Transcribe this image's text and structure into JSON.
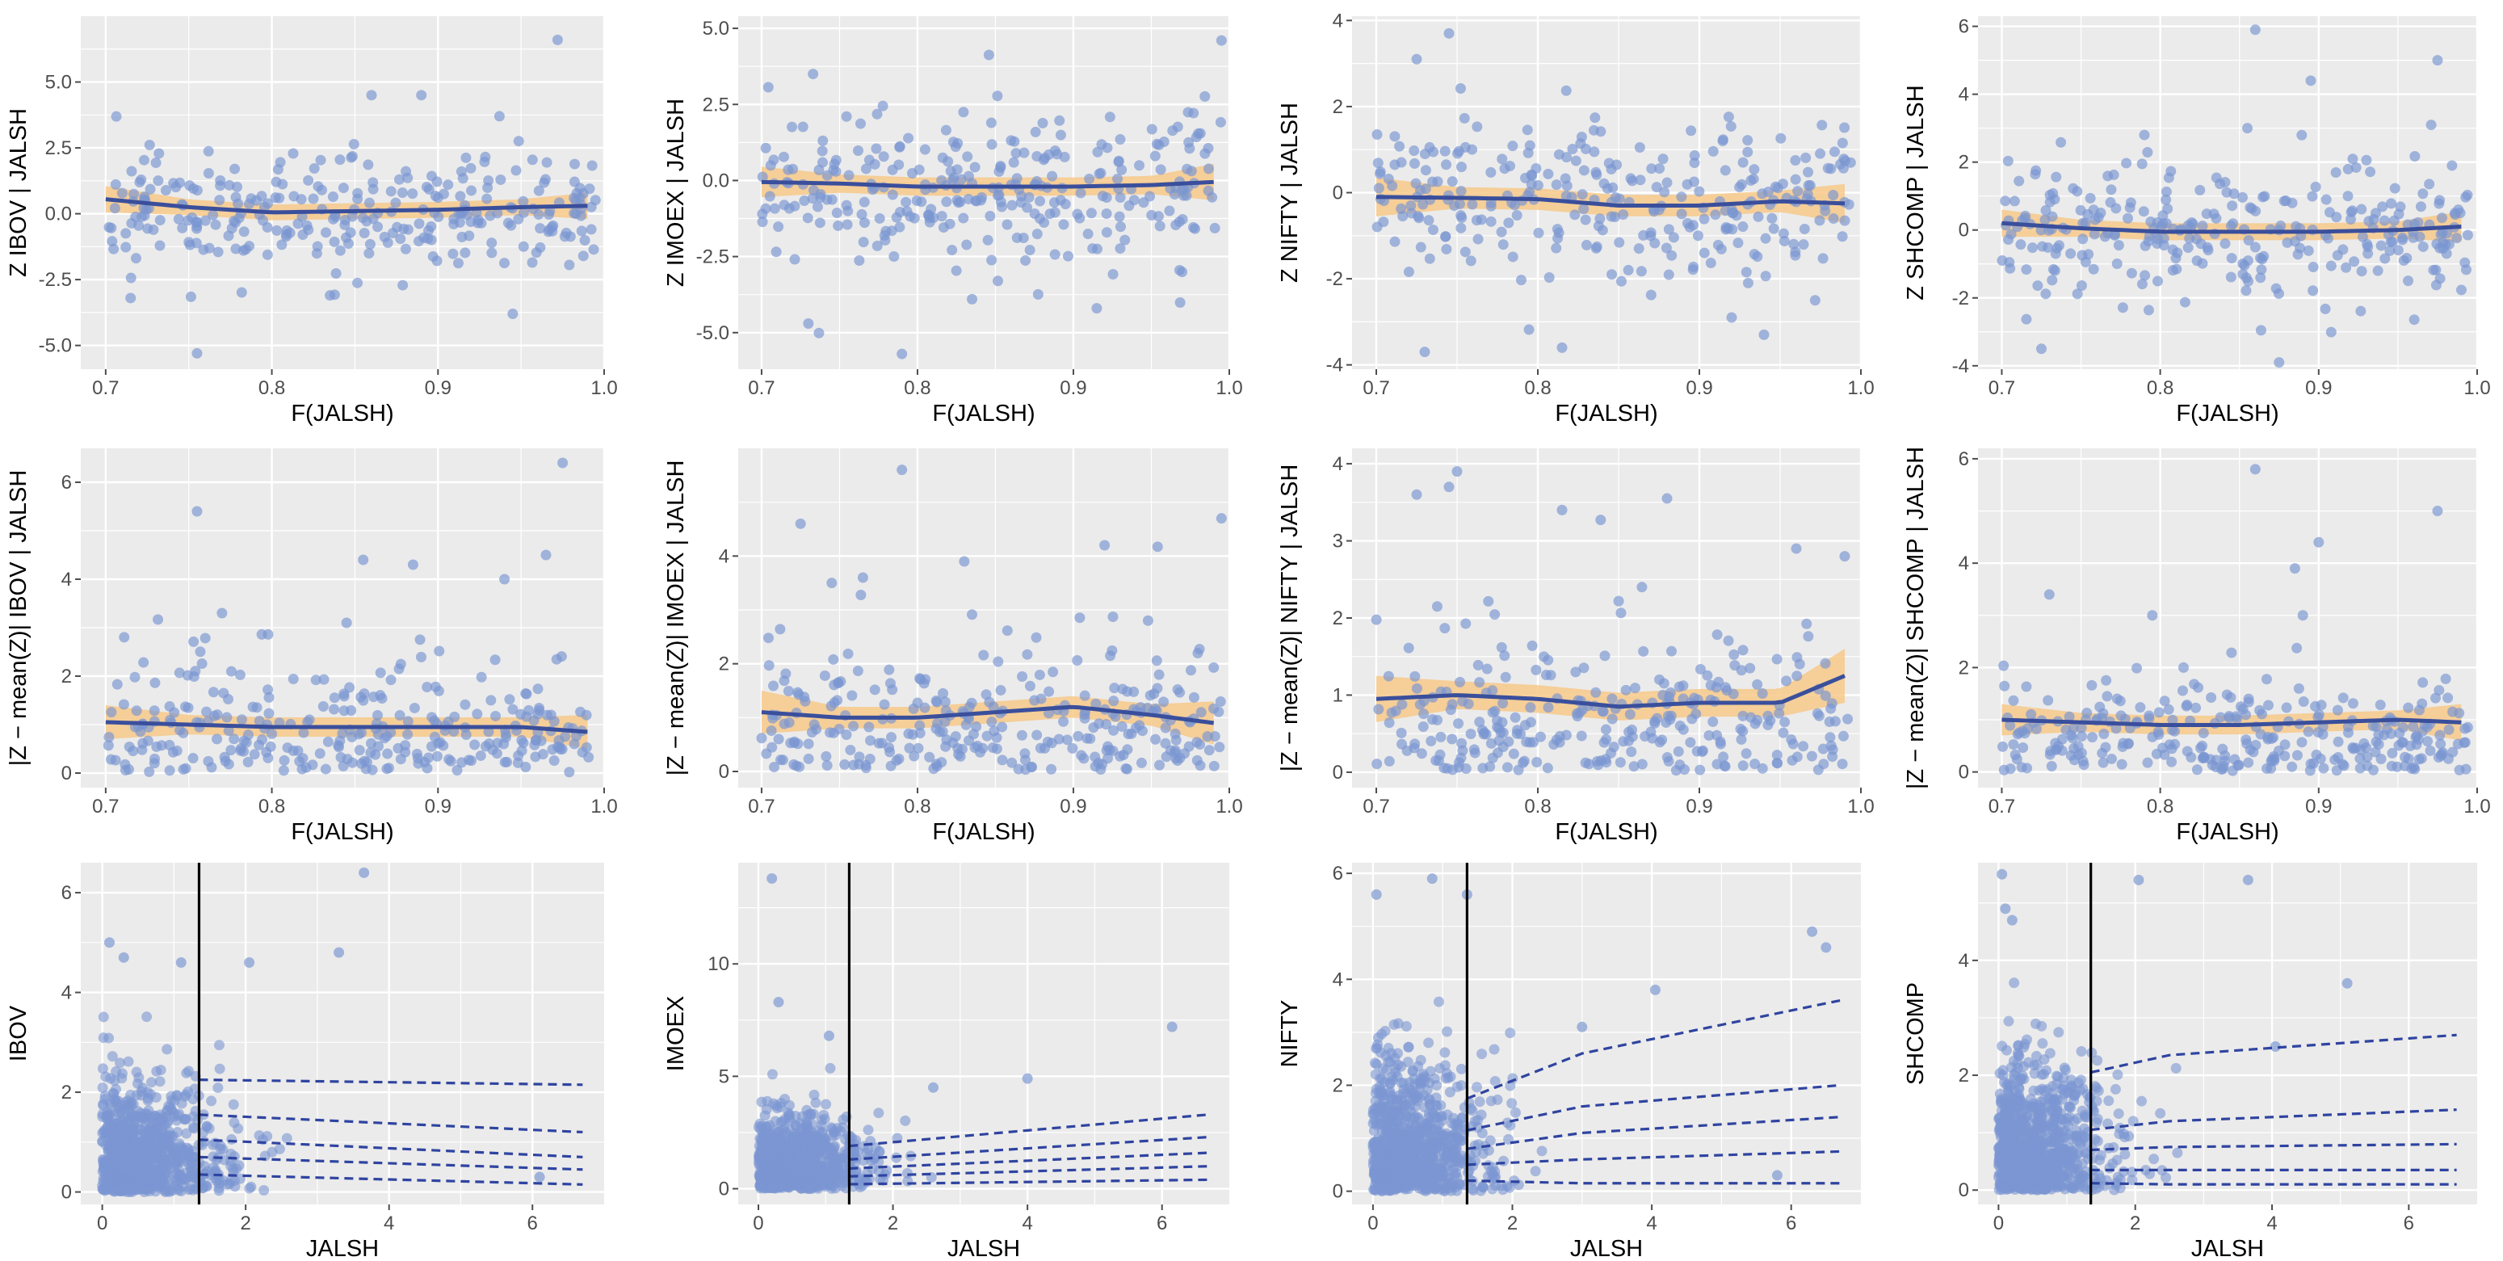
{
  "figure": {
    "background": "#ffffff",
    "panel_background": "#ebebeb",
    "grid_color": "#ffffff",
    "point_color": "#7b96d2",
    "smooth_color": "#3a4f9c",
    "band_color": "#f7c98a",
    "quantile_color": "#2f44a0",
    "threshold_color": "#000000",
    "tick_color": "#4d4d4d"
  },
  "chart_data": [
    {
      "id": "p11",
      "type": "scatter",
      "xlabel": "F(JALSH)",
      "ylabel": "Z  IBOV | JALSH",
      "xlim": [
        0.685,
        1.0
      ],
      "ylim": [
        -5.9,
        7.5
      ],
      "xticks": [
        0.7,
        0.8,
        0.9,
        1.0
      ],
      "xtick_labels": [
        "0.7",
        "0.8",
        "0.9",
        "1.0"
      ],
      "yticks": [
        -5,
        -2.5,
        0,
        2.5,
        5
      ],
      "ytick_labels": [
        "-5.0",
        "-2.5",
        "0.0",
        "2.5",
        "5.0"
      ],
      "n_points": 290,
      "seed": 11,
      "scatter_sd": 1.3,
      "smooth_x": [
        0.7,
        0.75,
        0.8,
        0.85,
        0.9,
        0.95,
        0.99
      ],
      "smooth_y": [
        0.55,
        0.25,
        0.05,
        0.1,
        0.15,
        0.25,
        0.3
      ],
      "band_half_width": [
        0.5,
        0.3,
        0.3,
        0.3,
        0.3,
        0.3,
        0.5
      ],
      "extra_points": [
        [
          0.755,
          -5.3
        ],
        [
          0.972,
          6.6
        ],
        [
          0.937,
          3.7
        ],
        [
          0.835,
          -3.1
        ],
        [
          0.945,
          -3.8
        ],
        [
          0.715,
          -3.2
        ],
        [
          0.86,
          4.5
        ],
        [
          0.89,
          4.5
        ]
      ]
    },
    {
      "id": "p12",
      "type": "scatter",
      "xlabel": "F(JALSH)",
      "ylabel": "Z  IMOEX | JALSH",
      "xlim": [
        0.685,
        1.0
      ],
      "ylim": [
        -6.2,
        5.4
      ],
      "xticks": [
        0.7,
        0.8,
        0.9,
        1.0
      ],
      "xtick_labels": [
        "0.7",
        "0.8",
        "0.9",
        "1.0"
      ],
      "yticks": [
        -5,
        -2.5,
        0,
        2.5,
        5
      ],
      "ytick_labels": [
        "-5.0",
        "-2.5",
        "0.0",
        "2.5",
        "5.0"
      ],
      "n_points": 290,
      "seed": 12,
      "scatter_sd": 1.5,
      "smooth_x": [
        0.7,
        0.75,
        0.8,
        0.85,
        0.9,
        0.95,
        0.99
      ],
      "smooth_y": [
        -0.05,
        -0.1,
        -0.2,
        -0.2,
        -0.2,
        -0.15,
        -0.05
      ],
      "band_half_width": [
        0.5,
        0.3,
        0.3,
        0.3,
        0.3,
        0.3,
        0.6
      ],
      "extra_points": [
        [
          0.79,
          -5.7
        ],
        [
          0.995,
          4.6
        ],
        [
          0.73,
          -4.7
        ],
        [
          0.733,
          3.5
        ],
        [
          0.915,
          -4.2
        ],
        [
          0.835,
          -3.9
        ]
      ]
    },
    {
      "id": "p13",
      "type": "scatter",
      "xlabel": "F(JALSH)",
      "ylabel": "Z  NIFTY | JALSH",
      "xlim": [
        0.685,
        1.0
      ],
      "ylim": [
        -4.1,
        4.1
      ],
      "xticks": [
        0.7,
        0.8,
        0.9,
        1.0
      ],
      "xtick_labels": [
        "0.7",
        "0.8",
        "0.9",
        "1.0"
      ],
      "yticks": [
        -4,
        -2,
        0,
        2,
        4
      ],
      "ytick_labels": [
        "-4",
        "-2",
        "0",
        "2",
        "4"
      ],
      "n_points": 290,
      "seed": 13,
      "scatter_sd": 1.15,
      "smooth_x": [
        0.7,
        0.75,
        0.8,
        0.85,
        0.9,
        0.95,
        0.99
      ],
      "smooth_y": [
        -0.1,
        -0.12,
        -0.15,
        -0.3,
        -0.3,
        -0.2,
        -0.25
      ],
      "band_half_width": [
        0.45,
        0.25,
        0.25,
        0.25,
        0.25,
        0.25,
        0.45
      ],
      "extra_points": [
        [
          0.745,
          3.7
        ],
        [
          0.725,
          3.1
        ],
        [
          0.73,
          -3.7
        ],
        [
          0.815,
          -3.6
        ],
        [
          0.94,
          -3.3
        ],
        [
          0.92,
          -2.9
        ]
      ]
    },
    {
      "id": "p14",
      "type": "scatter",
      "xlabel": "F(JALSH)",
      "ylabel": "Z  SHCOMP | JALSH",
      "xlim": [
        0.685,
        1.0
      ],
      "ylim": [
        -4.1,
        6.3
      ],
      "xticks": [
        0.7,
        0.8,
        0.9,
        1.0
      ],
      "xtick_labels": [
        "0.7",
        "0.8",
        "0.9",
        "1.0"
      ],
      "yticks": [
        -4,
        -2,
        0,
        2,
        4,
        6
      ],
      "ytick_labels": [
        "-4",
        "-2",
        "0",
        "2",
        "4",
        "6"
      ],
      "n_points": 290,
      "seed": 14,
      "scatter_sd": 1.15,
      "smooth_x": [
        0.7,
        0.75,
        0.8,
        0.85,
        0.9,
        0.95,
        0.99
      ],
      "smooth_y": [
        0.2,
        0.05,
        -0.05,
        -0.05,
        -0.05,
        0.0,
        0.1
      ],
      "band_half_width": [
        0.4,
        0.25,
        0.25,
        0.25,
        0.25,
        0.25,
        0.45
      ],
      "extra_points": [
        [
          0.86,
          5.9
        ],
        [
          0.975,
          5.0
        ],
        [
          0.895,
          4.4
        ],
        [
          0.725,
          -3.5
        ],
        [
          0.875,
          -3.9
        ],
        [
          0.855,
          3.0
        ],
        [
          0.79,
          2.8
        ]
      ]
    },
    {
      "id": "p21",
      "type": "scatter",
      "xlabel": "F(JALSH)",
      "ylabel": "|Z − mean(Z)|   IBOV | JALSH",
      "xlim": [
        0.685,
        1.0
      ],
      "ylim": [
        -0.3,
        6.7
      ],
      "xticks": [
        0.7,
        0.8,
        0.9,
        1.0
      ],
      "xtick_labels": [
        "0.7",
        "0.8",
        "0.9",
        "1.0"
      ],
      "yticks": [
        0,
        2,
        4,
        6
      ],
      "ytick_labels": [
        "0",
        "2",
        "4",
        "6"
      ],
      "n_points": 290,
      "seed": 21,
      "scatter_abs": true,
      "scatter_sd": 1.25,
      "smooth_x": [
        0.7,
        0.75,
        0.8,
        0.85,
        0.9,
        0.95,
        0.99
      ],
      "smooth_y": [
        1.05,
        1.0,
        0.95,
        0.95,
        0.95,
        0.95,
        0.85
      ],
      "band_half_width": [
        0.35,
        0.2,
        0.2,
        0.2,
        0.2,
        0.2,
        0.35
      ],
      "extra_points": [
        [
          0.975,
          6.4
        ],
        [
          0.755,
          5.4
        ],
        [
          0.855,
          4.4
        ],
        [
          0.885,
          4.3
        ],
        [
          0.965,
          4.5
        ],
        [
          0.94,
          4.0
        ],
        [
          0.845,
          3.1
        ],
        [
          0.77,
          3.3
        ]
      ]
    },
    {
      "id": "p22",
      "type": "scatter",
      "xlabel": "F(JALSH)",
      "ylabel": "|Z − mean(Z)|   IMOEX | JALSH",
      "xlim": [
        0.685,
        1.0
      ],
      "ylim": [
        -0.3,
        6.0
      ],
      "xticks": [
        0.7,
        0.8,
        0.9,
        1.0
      ],
      "xtick_labels": [
        "0.7",
        "0.8",
        "0.9",
        "1.0"
      ],
      "yticks": [
        0,
        2,
        4
      ],
      "ytick_labels": [
        "0",
        "2",
        "4"
      ],
      "n_points": 290,
      "seed": 22,
      "scatter_abs": true,
      "scatter_sd": 1.3,
      "smooth_x": [
        0.7,
        0.75,
        0.8,
        0.85,
        0.9,
        0.95,
        0.99
      ],
      "smooth_y": [
        1.1,
        1.0,
        1.0,
        1.1,
        1.2,
        1.05,
        0.9
      ],
      "band_half_width": [
        0.4,
        0.2,
        0.2,
        0.2,
        0.2,
        0.2,
        0.4
      ],
      "extra_points": [
        [
          0.79,
          5.6
        ],
        [
          0.995,
          4.7
        ],
        [
          0.725,
          4.6
        ],
        [
          0.92,
          4.2
        ],
        [
          0.765,
          3.6
        ],
        [
          0.83,
          3.9
        ],
        [
          0.745,
          3.5
        ]
      ]
    },
    {
      "id": "p23",
      "type": "scatter",
      "xlabel": "F(JALSH)",
      "ylabel": "|Z − mean(Z)|   NIFTY | JALSH",
      "xlim": [
        0.685,
        1.0
      ],
      "ylim": [
        -0.2,
        4.2
      ],
      "xticks": [
        0.7,
        0.8,
        0.9,
        1.0
      ],
      "xtick_labels": [
        "0.7",
        "0.8",
        "0.9",
        "1.0"
      ],
      "yticks": [
        0,
        1,
        2,
        3,
        4
      ],
      "ytick_labels": [
        "0",
        "1",
        "2",
        "3",
        "4"
      ],
      "n_points": 290,
      "seed": 23,
      "scatter_abs": true,
      "scatter_sd": 0.95,
      "smooth_x": [
        0.7,
        0.75,
        0.8,
        0.85,
        0.9,
        0.95,
        0.99
      ],
      "smooth_y": [
        0.95,
        1.0,
        0.95,
        0.85,
        0.9,
        0.9,
        1.25
      ],
      "band_half_width": [
        0.3,
        0.18,
        0.18,
        0.18,
        0.18,
        0.18,
        0.35
      ],
      "extra_points": [
        [
          0.75,
          3.9
        ],
        [
          0.745,
          3.7
        ],
        [
          0.725,
          3.6
        ],
        [
          0.88,
          3.55
        ],
        [
          0.815,
          3.4
        ],
        [
          0.99,
          2.8
        ],
        [
          0.96,
          2.9
        ]
      ]
    },
    {
      "id": "p24",
      "type": "scatter",
      "xlabel": "F(JALSH)",
      "ylabel": "|Z − mean(Z)|   SHCOMP | JALSH",
      "xlim": [
        0.685,
        1.0
      ],
      "ylim": [
        -0.3,
        6.2
      ],
      "xticks": [
        0.7,
        0.8,
        0.9,
        1.0
      ],
      "xtick_labels": [
        "0.7",
        "0.8",
        "0.9",
        "1.0"
      ],
      "yticks": [
        0,
        2,
        4,
        6
      ],
      "ytick_labels": [
        "0",
        "2",
        "4",
        "6"
      ],
      "n_points": 290,
      "seed": 24,
      "scatter_abs": true,
      "scatter_sd": 1.0,
      "smooth_x": [
        0.7,
        0.75,
        0.8,
        0.85,
        0.9,
        0.95,
        0.99
      ],
      "smooth_y": [
        1.0,
        0.95,
        0.9,
        0.9,
        0.95,
        1.0,
        0.95
      ],
      "band_half_width": [
        0.3,
        0.18,
        0.18,
        0.18,
        0.18,
        0.18,
        0.35
      ],
      "extra_points": [
        [
          0.86,
          5.8
        ],
        [
          0.975,
          5.0
        ],
        [
          0.9,
          4.4
        ],
        [
          0.885,
          3.9
        ],
        [
          0.73,
          3.4
        ],
        [
          0.89,
          3.0
        ],
        [
          0.795,
          3.0
        ]
      ]
    },
    {
      "id": "p31",
      "type": "scatter",
      "xlabel": "JALSH",
      "ylabel": "IBOV",
      "xlim": [
        -0.3,
        7.0
      ],
      "ylim": [
        -0.25,
        6.6
      ],
      "xticks": [
        0,
        2,
        4,
        6
      ],
      "xtick_labels": [
        "0",
        "2",
        "4",
        "6"
      ],
      "yticks": [
        0,
        2,
        4,
        6
      ],
      "ytick_labels": [
        "0",
        "2",
        "4",
        "6"
      ],
      "threshold": 1.35,
      "n_points": 900,
      "seed": 31,
      "dense_xscale": 0.75,
      "dense_yscale": 1.0,
      "quantile_lines": [
        {
          "x": [
            1.35,
            6.7
          ],
          "y": [
            2.25,
            2.15
          ]
        },
        {
          "x": [
            1.35,
            6.7
          ],
          "y": [
            1.55,
            1.2
          ]
        },
        {
          "x": [
            1.35,
            6.7
          ],
          "y": [
            1.05,
            0.7
          ]
        },
        {
          "x": [
            1.35,
            6.7
          ],
          "y": [
            0.7,
            0.45
          ]
        },
        {
          "x": [
            1.35,
            6.7
          ],
          "y": [
            0.35,
            0.15
          ]
        }
      ],
      "extra_points": [
        [
          3.65,
          6.4
        ],
        [
          1.1,
          4.6
        ],
        [
          2.05,
          4.6
        ],
        [
          3.3,
          4.8
        ],
        [
          0.1,
          5.0
        ],
        [
          0.3,
          4.7
        ],
        [
          6.1,
          0.3
        ]
      ]
    },
    {
      "id": "p32",
      "type": "scatter",
      "xlabel": "JALSH",
      "ylabel": "IMOEX",
      "xlim": [
        -0.3,
        7.0
      ],
      "ylim": [
        -0.7,
        14.5
      ],
      "xticks": [
        0,
        2,
        4,
        6
      ],
      "xtick_labels": [
        "0",
        "2",
        "4",
        "6"
      ],
      "yticks": [
        0,
        5,
        10
      ],
      "ytick_labels": [
        "0",
        "5",
        "10"
      ],
      "threshold": 1.35,
      "n_points": 900,
      "seed": 32,
      "dense_xscale": 0.75,
      "dense_yscale": 1.5,
      "quantile_lines": [
        {
          "x": [
            1.35,
            6.7
          ],
          "y": [
            1.9,
            3.3
          ]
        },
        {
          "x": [
            1.35,
            6.7
          ],
          "y": [
            1.3,
            2.3
          ]
        },
        {
          "x": [
            1.35,
            6.7
          ],
          "y": [
            0.9,
            1.6
          ]
        },
        {
          "x": [
            1.35,
            6.7
          ],
          "y": [
            0.55,
            1.0
          ]
        },
        {
          "x": [
            1.35,
            6.7
          ],
          "y": [
            0.2,
            0.4
          ]
        }
      ],
      "extra_points": [
        [
          0.2,
          13.8
        ],
        [
          6.15,
          7.2
        ],
        [
          0.3,
          8.3
        ],
        [
          1.05,
          6.8
        ],
        [
          4.0,
          4.9
        ],
        [
          2.6,
          4.5
        ]
      ]
    },
    {
      "id": "p33",
      "type": "scatter",
      "xlabel": "JALSH",
      "ylabel": "NIFTY",
      "xlim": [
        -0.3,
        7.0
      ],
      "ylim": [
        -0.25,
        6.2
      ],
      "xticks": [
        0,
        2,
        4,
        6
      ],
      "xtick_labels": [
        "0",
        "2",
        "4",
        "6"
      ],
      "yticks": [
        0,
        2,
        4,
        6
      ],
      "ytick_labels": [
        "0",
        "2",
        "4",
        "6"
      ],
      "threshold": 1.35,
      "n_points": 900,
      "seed": 33,
      "dense_xscale": 0.75,
      "dense_yscale": 1.1,
      "quantile_lines": [
        {
          "x": [
            1.35,
            3.0,
            6.7
          ],
          "y": [
            1.75,
            2.6,
            3.6
          ]
        },
        {
          "x": [
            1.35,
            3.0,
            6.7
          ],
          "y": [
            1.15,
            1.6,
            2.0
          ]
        },
        {
          "x": [
            1.35,
            3.0,
            6.7
          ],
          "y": [
            0.8,
            1.1,
            1.4
          ]
        },
        {
          "x": [
            1.35,
            3.0,
            6.7
          ],
          "y": [
            0.5,
            0.6,
            0.75
          ]
        },
        {
          "x": [
            1.35,
            3.0,
            6.7
          ],
          "y": [
            0.2,
            0.15,
            0.15
          ]
        }
      ],
      "extra_points": [
        [
          0.85,
          5.9
        ],
        [
          1.35,
          5.6
        ],
        [
          0.05,
          5.6
        ],
        [
          6.3,
          4.9
        ],
        [
          6.5,
          4.6
        ],
        [
          4.05,
          3.8
        ],
        [
          3.0,
          3.1
        ],
        [
          5.8,
          0.3
        ]
      ]
    },
    {
      "id": "p34",
      "type": "scatter",
      "xlabel": "JALSH",
      "ylabel": "SHCOMP",
      "xlim": [
        -0.3,
        7.0
      ],
      "ylim": [
        -0.25,
        5.7
      ],
      "xticks": [
        0,
        2,
        4,
        6
      ],
      "xtick_labels": [
        "0",
        "2",
        "4",
        "6"
      ],
      "yticks": [
        0,
        2,
        4
      ],
      "ytick_labels": [
        "0",
        "2",
        "4"
      ],
      "threshold": 1.35,
      "n_points": 900,
      "seed": 34,
      "dense_xscale": 0.75,
      "dense_yscale": 1.0,
      "quantile_lines": [
        {
          "x": [
            1.35,
            2.5,
            6.7
          ],
          "y": [
            2.05,
            2.35,
            2.7
          ]
        },
        {
          "x": [
            1.35,
            2.5,
            6.7
          ],
          "y": [
            1.05,
            1.2,
            1.4
          ]
        },
        {
          "x": [
            1.35,
            2.5,
            6.7
          ],
          "y": [
            0.7,
            0.75,
            0.8
          ]
        },
        {
          "x": [
            1.35,
            2.5,
            6.7
          ],
          "y": [
            0.35,
            0.35,
            0.35
          ]
        },
        {
          "x": [
            1.35,
            2.5,
            6.7
          ],
          "y": [
            0.12,
            0.1,
            0.1
          ]
        }
      ],
      "extra_points": [
        [
          0.05,
          5.5
        ],
        [
          2.05,
          5.4
        ],
        [
          3.65,
          5.4
        ],
        [
          0.1,
          4.9
        ],
        [
          0.2,
          4.7
        ],
        [
          5.1,
          3.6
        ],
        [
          4.05,
          2.5
        ]
      ]
    }
  ]
}
